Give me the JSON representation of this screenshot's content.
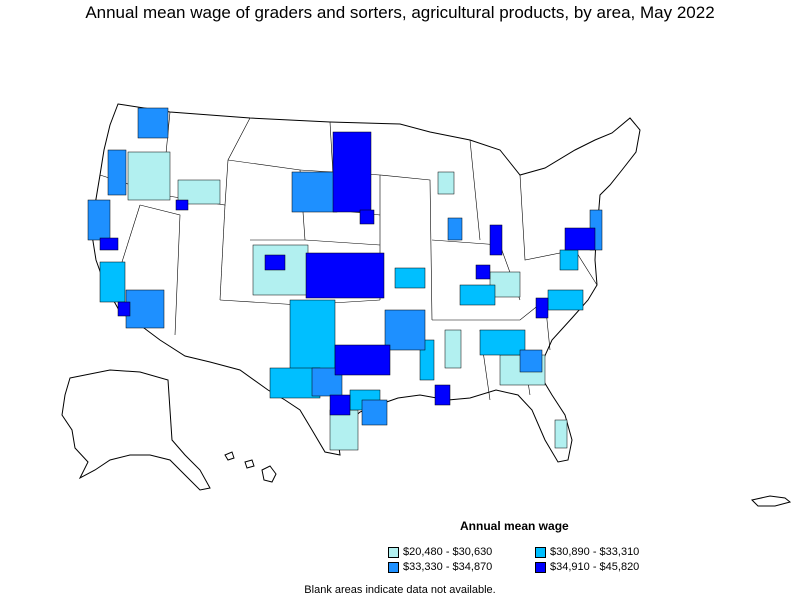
{
  "title": "Annual mean wage of graders and sorters, agricultural products, by area, May 2022",
  "legend": {
    "title": "Annual mean wage",
    "items": [
      {
        "label": "$20,480 - $30,630",
        "color": "#b2f0f0"
      },
      {
        "label": "$30,890 - $33,310",
        "color": "#00bfff"
      },
      {
        "label": "$33,330 - $34,870",
        "color": "#1e90ff"
      },
      {
        "label": "$34,910 - $45,820",
        "color": "#0000ff"
      }
    ]
  },
  "footnote": "Blank areas indicate data not available.",
  "colors": {
    "no_data": "#ffffff",
    "border": "#000000",
    "tier1": "#b2f0f0",
    "tier2": "#00bfff",
    "tier3": "#1e90ff",
    "tier4": "#0000ff"
  }
}
